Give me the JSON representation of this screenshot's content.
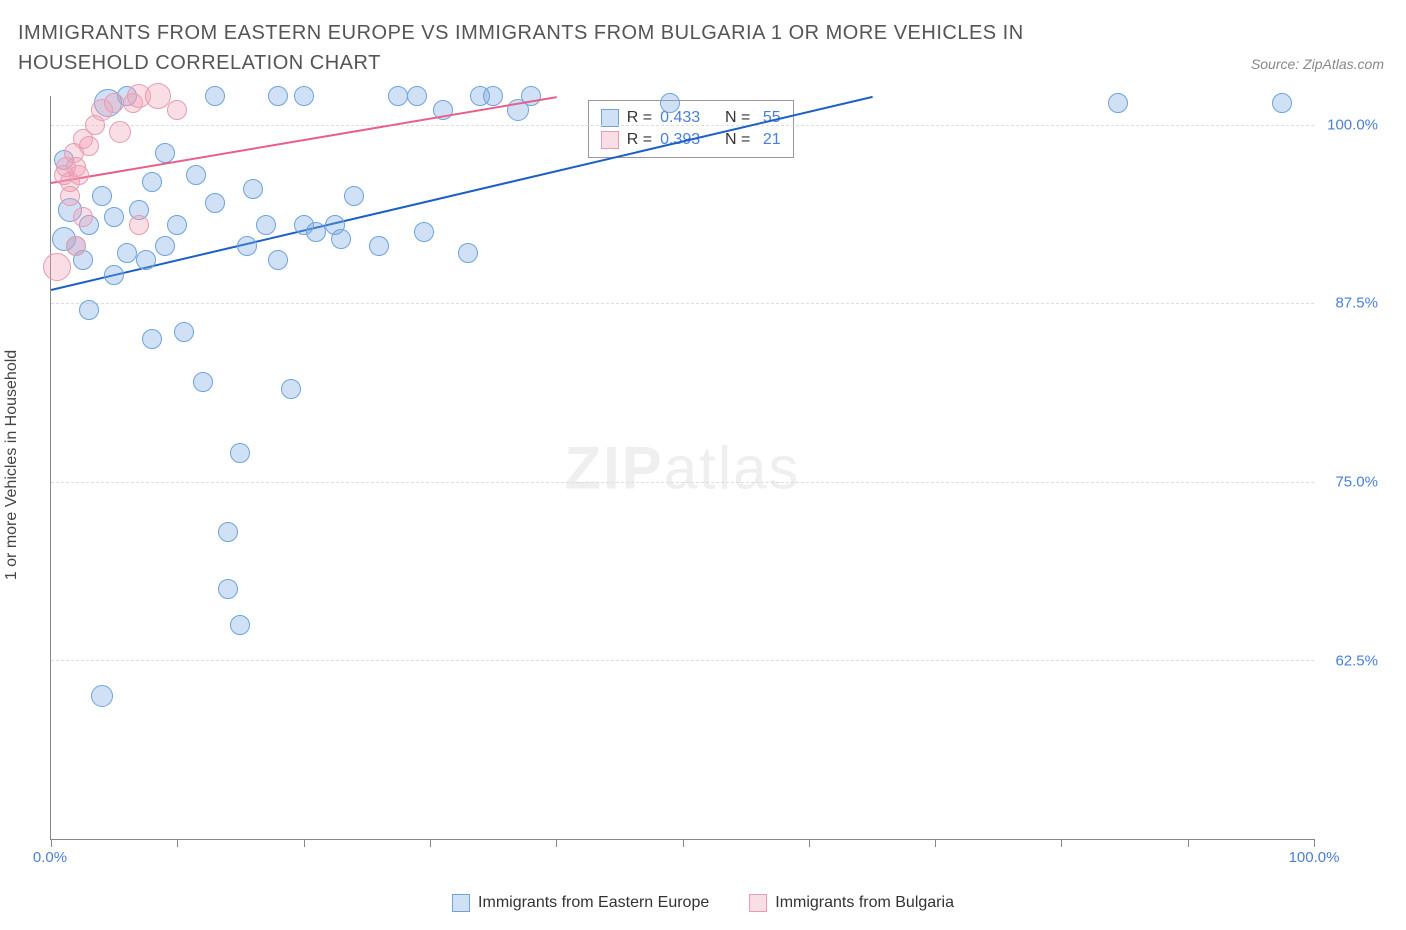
{
  "title": "IMMIGRANTS FROM EASTERN EUROPE VS IMMIGRANTS FROM BULGARIA 1 OR MORE VEHICLES IN HOUSEHOLD CORRELATION CHART",
  "source": "Source: ZipAtlas.com",
  "ylabel": "1 or more Vehicles in Household",
  "watermark_bold": "ZIP",
  "watermark_light": "atlas",
  "chart": {
    "type": "scatter",
    "xlim": [
      0,
      100
    ],
    "ylim": [
      50,
      102
    ],
    "background_color": "#ffffff",
    "grid_color": "#dddddd",
    "axis_color": "#888888",
    "yticks": [
      {
        "v": 100,
        "label": "100.0%"
      },
      {
        "v": 87.5,
        "label": "87.5%"
      },
      {
        "v": 75,
        "label": "75.0%"
      },
      {
        "v": 62.5,
        "label": "62.5%"
      }
    ],
    "xticks": [
      0,
      10,
      20,
      30,
      40,
      50,
      60,
      70,
      80,
      90,
      100
    ],
    "xtick_labels": {
      "0": "0.0%",
      "100": "100.0%"
    },
    "series": [
      {
        "name": "Immigrants from Eastern Europe",
        "fill": "rgba(120,170,230,0.35)",
        "stroke": "#6fa3d8",
        "trend_color": "#1e5fc4",
        "R": "0.433",
        "N": "55",
        "trend": {
          "x1": 0,
          "y1": 88.5,
          "x2": 65,
          "y2": 102
        },
        "points": [
          {
            "x": 1,
            "y": 92,
            "r": 12
          },
          {
            "x": 1,
            "y": 97.5,
            "r": 10
          },
          {
            "x": 1.5,
            "y": 94,
            "r": 12
          },
          {
            "x": 2,
            "y": 91.5,
            "r": 10
          },
          {
            "x": 2.5,
            "y": 90.5,
            "r": 10
          },
          {
            "x": 3,
            "y": 93,
            "r": 10
          },
          {
            "x": 3,
            "y": 87,
            "r": 10
          },
          {
            "x": 4,
            "y": 95,
            "r": 10
          },
          {
            "x": 4,
            "y": 60,
            "r": 11
          },
          {
            "x": 4.5,
            "y": 101.5,
            "r": 14
          },
          {
            "x": 5,
            "y": 93.5,
            "r": 10
          },
          {
            "x": 5,
            "y": 89.5,
            "r": 10
          },
          {
            "x": 6,
            "y": 102,
            "r": 10
          },
          {
            "x": 6,
            "y": 91,
            "r": 10
          },
          {
            "x": 7,
            "y": 94,
            "r": 10
          },
          {
            "x": 7.5,
            "y": 90.5,
            "r": 10
          },
          {
            "x": 8,
            "y": 96,
            "r": 10
          },
          {
            "x": 8,
            "y": 85,
            "r": 10
          },
          {
            "x": 9,
            "y": 98,
            "r": 10
          },
          {
            "x": 9,
            "y": 91.5,
            "r": 10
          },
          {
            "x": 10,
            "y": 93,
            "r": 10
          },
          {
            "x": 10.5,
            "y": 85.5,
            "r": 10
          },
          {
            "x": 11.5,
            "y": 96.5,
            "r": 10
          },
          {
            "x": 12,
            "y": 82,
            "r": 10
          },
          {
            "x": 13,
            "y": 102,
            "r": 10
          },
          {
            "x": 13,
            "y": 94.5,
            "r": 10
          },
          {
            "x": 14,
            "y": 71.5,
            "r": 10
          },
          {
            "x": 14,
            "y": 67.5,
            "r": 10
          },
          {
            "x": 15,
            "y": 65,
            "r": 10
          },
          {
            "x": 15,
            "y": 77,
            "r": 10
          },
          {
            "x": 15.5,
            "y": 91.5,
            "r": 10
          },
          {
            "x": 16,
            "y": 95.5,
            "r": 10
          },
          {
            "x": 17,
            "y": 93,
            "r": 10
          },
          {
            "x": 18,
            "y": 102,
            "r": 10
          },
          {
            "x": 18,
            "y": 90.5,
            "r": 10
          },
          {
            "x": 19,
            "y": 81.5,
            "r": 10
          },
          {
            "x": 20,
            "y": 93,
            "r": 10
          },
          {
            "x": 20,
            "y": 102,
            "r": 10
          },
          {
            "x": 21,
            "y": 92.5,
            "r": 10
          },
          {
            "x": 22.5,
            "y": 93,
            "r": 10
          },
          {
            "x": 23,
            "y": 92,
            "r": 10
          },
          {
            "x": 24,
            "y": 95,
            "r": 10
          },
          {
            "x": 26,
            "y": 91.5,
            "r": 10
          },
          {
            "x": 27.5,
            "y": 102,
            "r": 10
          },
          {
            "x": 29,
            "y": 102,
            "r": 10
          },
          {
            "x": 29.5,
            "y": 92.5,
            "r": 10
          },
          {
            "x": 31,
            "y": 101,
            "r": 10
          },
          {
            "x": 33,
            "y": 91,
            "r": 10
          },
          {
            "x": 34,
            "y": 102,
            "r": 10
          },
          {
            "x": 35,
            "y": 102,
            "r": 10
          },
          {
            "x": 37,
            "y": 101,
            "r": 11
          },
          {
            "x": 38,
            "y": 102,
            "r": 10
          },
          {
            "x": 49,
            "y": 101.5,
            "r": 10
          },
          {
            "x": 84.5,
            "y": 101.5,
            "r": 10
          },
          {
            "x": 97.5,
            "y": 101.5,
            "r": 10
          }
        ]
      },
      {
        "name": "Immigrants from Bulgaria",
        "fill": "rgba(240,160,180,0.35)",
        "stroke": "#e89cb0",
        "trend_color": "#e85f8a",
        "R": "0.393",
        "N": "21",
        "trend": {
          "x1": 0,
          "y1": 96,
          "x2": 40,
          "y2": 102
        },
        "points": [
          {
            "x": 0.5,
            "y": 90,
            "r": 14
          },
          {
            "x": 1,
            "y": 96.5,
            "r": 10
          },
          {
            "x": 1.2,
            "y": 97,
            "r": 10
          },
          {
            "x": 1.5,
            "y": 96,
            "r": 10
          },
          {
            "x": 1.5,
            "y": 95,
            "r": 10
          },
          {
            "x": 1.8,
            "y": 98,
            "r": 10
          },
          {
            "x": 2,
            "y": 97,
            "r": 10
          },
          {
            "x": 2,
            "y": 91.5,
            "r": 10
          },
          {
            "x": 2.2,
            "y": 96.5,
            "r": 10
          },
          {
            "x": 2.5,
            "y": 99,
            "r": 10
          },
          {
            "x": 2.5,
            "y": 93.5,
            "r": 10
          },
          {
            "x": 3,
            "y": 98.5,
            "r": 10
          },
          {
            "x": 3.5,
            "y": 100,
            "r": 10
          },
          {
            "x": 4,
            "y": 101,
            "r": 11
          },
          {
            "x": 5,
            "y": 101.5,
            "r": 10
          },
          {
            "x": 5.5,
            "y": 99.5,
            "r": 11
          },
          {
            "x": 6.5,
            "y": 101.5,
            "r": 10
          },
          {
            "x": 7,
            "y": 102,
            "r": 12
          },
          {
            "x": 7,
            "y": 93,
            "r": 10
          },
          {
            "x": 8.5,
            "y": 102,
            "r": 13
          },
          {
            "x": 10,
            "y": 101,
            "r": 10
          }
        ]
      }
    ]
  },
  "legend_box": {
    "rows": [
      {
        "swatch_fill": "rgba(120,170,230,0.35)",
        "swatch_stroke": "#6fa3d8",
        "r_label": "R =",
        "r_val": "0.433",
        "n_label": "N =",
        "n_val": "55"
      },
      {
        "swatch_fill": "rgba(240,160,180,0.35)",
        "swatch_stroke": "#e89cb0",
        "r_label": "R =",
        "r_val": "0.393",
        "n_label": "N =",
        "n_val": "21"
      }
    ]
  },
  "bottom_legend": [
    {
      "swatch_fill": "rgba(120,170,230,0.35)",
      "swatch_stroke": "#6fa3d8",
      "label": "Immigrants from Eastern Europe"
    },
    {
      "swatch_fill": "rgba(240,160,180,0.35)",
      "swatch_stroke": "#e89cb0",
      "label": "Immigrants from Bulgaria"
    }
  ]
}
